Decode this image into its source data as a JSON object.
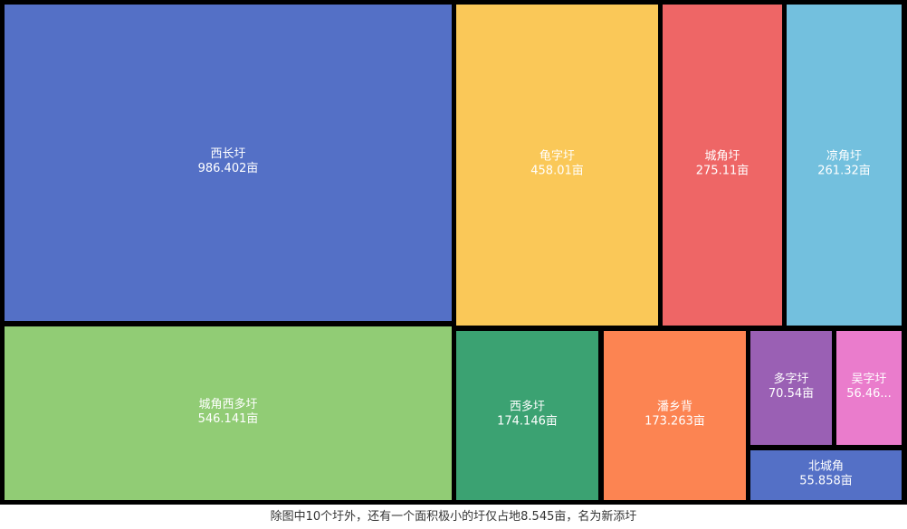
{
  "chart_data": {
    "type": "treemap",
    "unit": "亩",
    "items": [
      {
        "name": "西长圩",
        "value": 986.402,
        "label": "986.402亩",
        "color": "#5470c6"
      },
      {
        "name": "城角西多圩",
        "value": 546.141,
        "label": "546.141亩",
        "color": "#91cc75"
      },
      {
        "name": "龟字圩",
        "value": 458.01,
        "label": "458.01亩",
        "color": "#fac858"
      },
      {
        "name": "城角圩",
        "value": 275.11,
        "label": "275.11亩",
        "color": "#ee6666"
      },
      {
        "name": "凉角圩",
        "value": 261.32,
        "label": "261.32亩",
        "color": "#73c0de"
      },
      {
        "name": "西多圩",
        "value": 174.146,
        "label": "174.146亩",
        "color": "#3ba272"
      },
      {
        "name": "潘乡背",
        "value": 173.263,
        "label": "173.263亩",
        "color": "#fc8452"
      },
      {
        "name": "多字圩",
        "value": 70.54,
        "label": "70.54亩",
        "color": "#9a60b4"
      },
      {
        "name": "吴字圩",
        "value": 56.46,
        "label": "56.46...",
        "color": "#ea7ccc"
      },
      {
        "name": "北城角",
        "value": 55.858,
        "label": "55.858亩",
        "color": "#5470c6"
      }
    ]
  },
  "caption": "除图中10个圩外，还有一个面积极小的圩仅占地8.545亩，名为新添圩"
}
